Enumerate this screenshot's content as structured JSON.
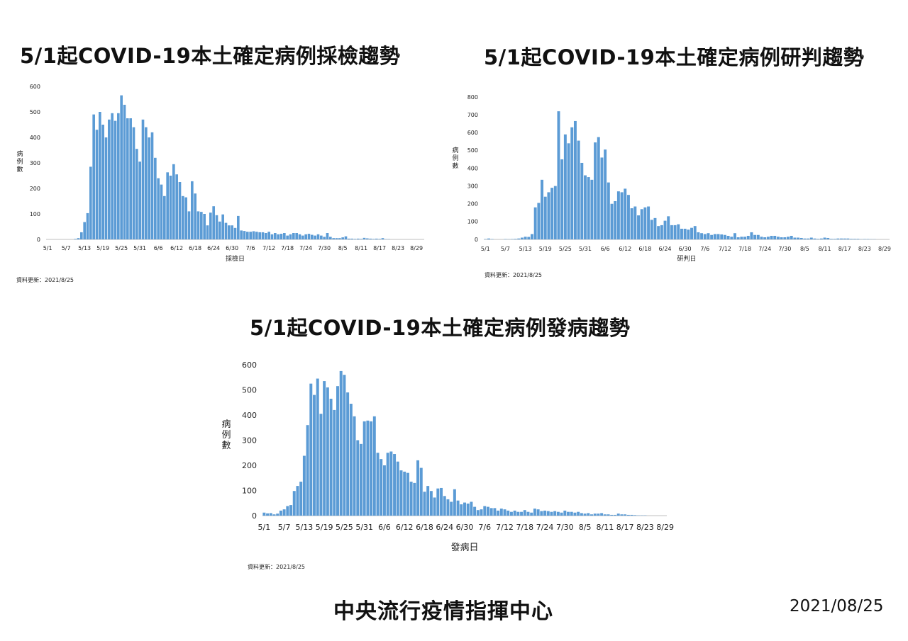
{
  "titles": {
    "sampling": "5/1起COVID-19本土確定病例採檢趨勢",
    "confirm": "5/1起COVID-19本土確定病例研判趨勢",
    "onset": "5/1起COVID-19本土確定病例發病趨勢"
  },
  "update_text": "資料更新：2021/8/25",
  "footer": {
    "org": "中央流行疫情指揮中心",
    "date": "2021/08/25"
  },
  "colors": {
    "bar": "#5b9bd5",
    "axis": "#bfbfbf"
  },
  "chart_data": [
    {
      "type": "bar",
      "title": "5/1起COVID-19本土確定病例採檢趨勢",
      "xlabel": "採檢日",
      "ylabel": "病例數",
      "ylim": [
        0,
        600
      ],
      "yticks": [
        0,
        100,
        200,
        300,
        400,
        500,
        600
      ],
      "x_tick_labels": [
        "5/1",
        "5/7",
        "5/13",
        "5/19",
        "5/25",
        "5/31",
        "6/6",
        "6/12",
        "6/18",
        "6/24",
        "6/30",
        "7/6",
        "7/12",
        "7/18",
        "7/24",
        "7/30",
        "8/5",
        "8/11",
        "8/17",
        "8/23",
        "8/29"
      ],
      "x_start": "5/1",
      "values": [
        0,
        0,
        0,
        0,
        0,
        0,
        0,
        0,
        0,
        2,
        5,
        28,
        68,
        103,
        285,
        490,
        430,
        500,
        450,
        400,
        470,
        495,
        465,
        495,
        565,
        528,
        475,
        475,
        440,
        355,
        305,
        470,
        440,
        400,
        420,
        320,
        240,
        215,
        170,
        263,
        250,
        295,
        255,
        225,
        170,
        165,
        110,
        228,
        180,
        110,
        108,
        100,
        55,
        105,
        130,
        95,
        70,
        98,
        65,
        55,
        55,
        45,
        92,
        35,
        33,
        30,
        30,
        32,
        30,
        28,
        28,
        25,
        30,
        20,
        25,
        20,
        22,
        25,
        15,
        20,
        25,
        25,
        20,
        15,
        20,
        22,
        18,
        15,
        20,
        15,
        10,
        25,
        10,
        5,
        5,
        5,
        8,
        12,
        3,
        3,
        2,
        3,
        2,
        6,
        4,
        3,
        2,
        3,
        2,
        5,
        1,
        1,
        0,
        0,
        0,
        0,
        0,
        0,
        0,
        0,
        0,
        0,
        0
      ]
    },
    {
      "type": "bar",
      "title": "5/1起COVID-19本土確定病例研判趨勢",
      "xlabel": "研判日",
      "ylabel": "病例數",
      "ylim": [
        0,
        800
      ],
      "yticks": [
        0,
        100,
        200,
        300,
        400,
        500,
        600,
        700,
        800
      ],
      "x_tick_labels": [
        "5/1",
        "5/7",
        "5/13",
        "5/19",
        "5/25",
        "5/31",
        "6/6",
        "6/12",
        "6/18",
        "6/24",
        "6/30",
        "7/6",
        "7/12",
        "7/18",
        "7/24",
        "7/30",
        "8/5",
        "8/11",
        "8/17",
        "8/23",
        "8/29"
      ],
      "x_start": "5/1",
      "values": [
        2,
        5,
        2,
        0,
        0,
        0,
        2,
        1,
        2,
        3,
        5,
        10,
        15,
        14,
        30,
        180,
        205,
        335,
        240,
        265,
        290,
        300,
        720,
        450,
        590,
        540,
        630,
        665,
        555,
        430,
        360,
        350,
        335,
        545,
        575,
        460,
        505,
        320,
        200,
        215,
        270,
        265,
        285,
        250,
        175,
        185,
        135,
        170,
        180,
        185,
        110,
        120,
        75,
        80,
        105,
        130,
        80,
        80,
        85,
        60,
        60,
        55,
        65,
        75,
        40,
        35,
        30,
        35,
        25,
        30,
        30,
        28,
        25,
        20,
        15,
        35,
        12,
        15,
        15,
        20,
        40,
        25,
        25,
        15,
        12,
        15,
        20,
        20,
        15,
        12,
        12,
        15,
        20,
        10,
        10,
        8,
        5,
        5,
        10,
        5,
        3,
        5,
        10,
        8,
        3,
        3,
        5,
        5,
        5,
        5,
        3,
        3,
        3,
        1,
        2,
        2,
        1,
        1,
        0,
        0,
        0,
        0
      ]
    },
    {
      "type": "bar",
      "title": "5/1起COVID-19本土確定病例發病趨勢",
      "xlabel": "發病日",
      "ylabel": "病例數",
      "ylim": [
        0,
        600
      ],
      "yticks": [
        0,
        100,
        200,
        300,
        400,
        500,
        600
      ],
      "x_tick_labels": [
        "5/1",
        "5/7",
        "5/13",
        "5/19",
        "5/25",
        "5/31",
        "6/6",
        "6/12",
        "6/18",
        "6/24",
        "6/30",
        "7/6",
        "7/12",
        "7/18",
        "7/24",
        "7/30",
        "8/5",
        "8/11",
        "8/17",
        "8/23",
        "8/29"
      ],
      "x_start": "5/1",
      "values": [
        12,
        9,
        10,
        5,
        8,
        20,
        25,
        38,
        42,
        98,
        118,
        135,
        238,
        360,
        525,
        480,
        545,
        405,
        535,
        510,
        465,
        420,
        515,
        575,
        560,
        490,
        445,
        395,
        300,
        285,
        375,
        378,
        375,
        395,
        250,
        225,
        200,
        250,
        255,
        245,
        215,
        180,
        175,
        170,
        135,
        130,
        220,
        190,
        95,
        118,
        98,
        72,
        108,
        110,
        78,
        65,
        55,
        105,
        60,
        45,
        52,
        48,
        55,
        35,
        22,
        25,
        38,
        35,
        30,
        30,
        20,
        28,
        25,
        20,
        15,
        20,
        15,
        15,
        22,
        15,
        12,
        28,
        25,
        18,
        20,
        18,
        15,
        18,
        15,
        12,
        20,
        15,
        15,
        12,
        15,
        10,
        8,
        10,
        5,
        8,
        8,
        10,
        5,
        5,
        3,
        3,
        8,
        5,
        5,
        3,
        3,
        2,
        1,
        1,
        1,
        0,
        0,
        0,
        0,
        0,
        0
      ]
    }
  ]
}
